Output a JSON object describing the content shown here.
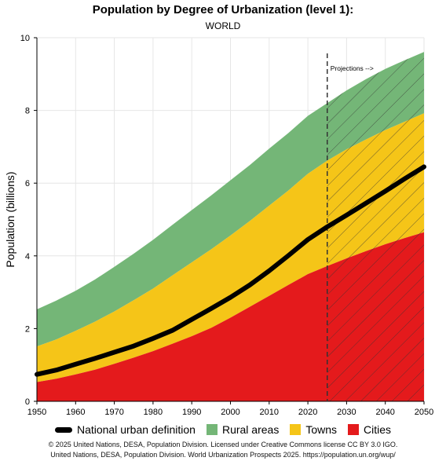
{
  "title": "Population by Degree of Urbanization (level 1):",
  "subtitle": "WORLD",
  "projection_label": "Projections -->",
  "colors": {
    "cities": "#e41a1c",
    "towns": "#f5c518",
    "rural": "#74b677",
    "urban_line": "#000000",
    "grid": "#e6e6e6"
  },
  "legend": [
    {
      "name": "National urban definition",
      "kind": "line",
      "color": "#000000"
    },
    {
      "name": "Rural areas",
      "kind": "swatch",
      "color": "#74b677"
    },
    {
      "name": "Towns",
      "kind": "swatch",
      "color": "#f5c518"
    },
    {
      "name": "Cities",
      "kind": "swatch",
      "color": "#e41a1c"
    }
  ],
  "credits": [
    "© 2025 United Nations, DESA, Population Division. Licensed under Creative Commons license CC BY 3.0 IGO.",
    "United Nations, DESA, Population Division. World Urbanization Prospects 2025. https://population.un.org/wup/"
  ],
  "chart_data": {
    "type": "area",
    "ylabel": "Population (billions)",
    "xlim": [
      1950,
      2050
    ],
    "ylim": [
      0,
      10
    ],
    "xticks": [
      1950,
      1960,
      1970,
      1980,
      1990,
      2000,
      2010,
      2020,
      2030,
      2040,
      2050
    ],
    "yticks": [
      0,
      2,
      4,
      6,
      8,
      10
    ],
    "projection_start": 2025,
    "grid": true,
    "x": [
      1950,
      1955,
      1960,
      1965,
      1970,
      1975,
      1980,
      1985,
      1990,
      1995,
      2000,
      2005,
      2010,
      2015,
      2020,
      2025,
      2030,
      2035,
      2040,
      2045,
      2050
    ],
    "series": [
      {
        "name": "Cities",
        "values": [
          0.53,
          0.62,
          0.74,
          0.87,
          1.03,
          1.2,
          1.38,
          1.58,
          1.79,
          2.02,
          2.3,
          2.6,
          2.9,
          3.2,
          3.5,
          3.72,
          3.93,
          4.13,
          4.32,
          4.49,
          4.65
        ]
      },
      {
        "name": "Towns",
        "values": [
          0.98,
          1.08,
          1.2,
          1.32,
          1.44,
          1.58,
          1.72,
          1.88,
          2.03,
          2.16,
          2.26,
          2.36,
          2.48,
          2.6,
          2.76,
          2.9,
          3.0,
          3.07,
          3.14,
          3.2,
          3.27
        ]
      },
      {
        "name": "Rural areas",
        "values": [
          1.02,
          1.07,
          1.1,
          1.16,
          1.23,
          1.28,
          1.34,
          1.39,
          1.44,
          1.48,
          1.52,
          1.54,
          1.57,
          1.58,
          1.59,
          1.58,
          1.62,
          1.66,
          1.68,
          1.69,
          1.69
        ]
      },
      {
        "name": "National urban definition",
        "values": [
          0.74,
          0.86,
          1.02,
          1.18,
          1.35,
          1.52,
          1.73,
          1.95,
          2.25,
          2.55,
          2.86,
          3.2,
          3.59,
          4.01,
          4.45,
          4.8,
          5.12,
          5.45,
          5.78,
          6.12,
          6.45
        ]
      }
    ]
  }
}
